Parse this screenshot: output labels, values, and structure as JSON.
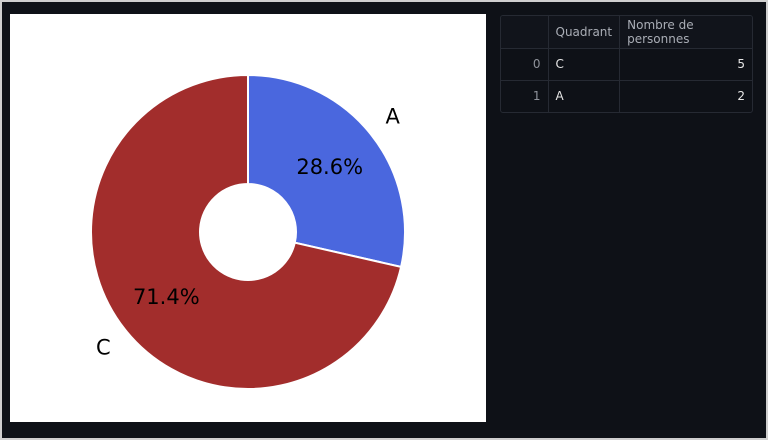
{
  "chart_data": {
    "type": "pie",
    "hole": true,
    "slices": [
      {
        "label": "A",
        "value": 2,
        "pct_label": "28.6%",
        "color": "#4a67de"
      },
      {
        "label": "C",
        "value": 5,
        "pct_label": "71.4%",
        "color": "#a22d2c"
      }
    ]
  },
  "table": {
    "columns": [
      "",
      "Quadrant",
      "Nombre de personnes"
    ],
    "rows": [
      {
        "index": "0",
        "quadrant": "C",
        "count": "5"
      },
      {
        "index": "1",
        "quadrant": "A",
        "count": "2"
      }
    ]
  },
  "colors": {
    "background": "#0e1117",
    "slice_border": "#ffffff"
  }
}
